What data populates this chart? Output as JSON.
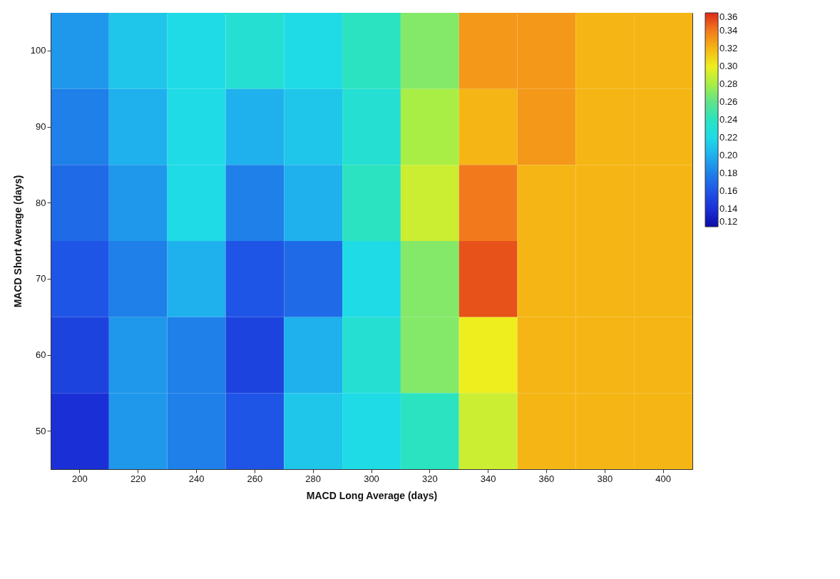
{
  "chart_data": {
    "type": "heatmap",
    "xlabel": "MACD Long Average (days)",
    "ylabel": "MACD Short Average (days)",
    "categories": [
      "200",
      "220",
      "240",
      "260",
      "280",
      "300",
      "320",
      "340",
      "360",
      "380",
      "400"
    ],
    "y_categories": [
      "100",
      "90",
      "80",
      "70",
      "60",
      "50"
    ],
    "cells": [
      [
        0.19,
        0.21,
        0.22,
        0.23,
        0.22,
        0.24,
        0.27,
        0.33,
        0.33,
        0.32,
        0.32
      ],
      [
        0.18,
        0.2,
        0.22,
        0.2,
        0.21,
        0.23,
        0.28,
        0.32,
        0.33,
        0.32,
        0.32
      ],
      [
        0.17,
        0.19,
        0.22,
        0.18,
        0.2,
        0.24,
        0.29,
        0.34,
        0.32,
        0.32,
        0.32
      ],
      [
        0.16,
        0.18,
        0.2,
        0.16,
        0.17,
        0.22,
        0.27,
        0.35,
        0.32,
        0.32,
        0.32
      ],
      [
        0.15,
        0.19,
        0.18,
        0.15,
        0.2,
        0.23,
        0.27,
        0.3,
        0.32,
        0.32,
        0.32
      ],
      [
        0.14,
        0.19,
        0.18,
        0.16,
        0.21,
        0.22,
        0.24,
        0.29,
        0.32,
        0.32,
        0.32
      ]
    ],
    "clim": [
      0.12,
      0.36
    ],
    "cticks": [
      0.12,
      0.14,
      0.16,
      0.18,
      {
        "value": 0.2,
        "label": "0.20"
      },
      0.22,
      0.24,
      0.26,
      0.28,
      {
        "value": 0.3,
        "label": "0.30"
      },
      0.32,
      0.34,
      0.36
    ]
  }
}
